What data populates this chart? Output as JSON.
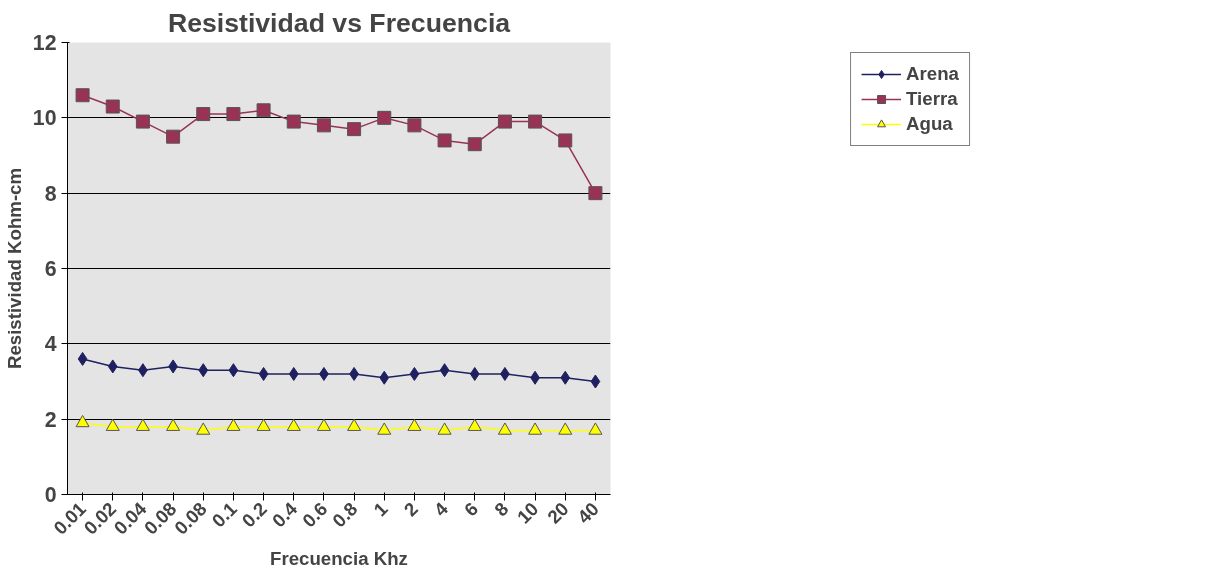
{
  "chart_data": {
    "type": "line",
    "title": "Resistividad vs Frecuencia",
    "xlabel": "Frecuencia Khz",
    "ylabel": "Resistividad Kohm-cm",
    "categories": [
      "0.01",
      "0.02",
      "0.04",
      "0.08",
      "0.08",
      "0.1",
      "0.2",
      "0.4",
      "0.6",
      "0.8",
      "1",
      "2",
      "4",
      "6",
      "8",
      "10",
      "20",
      "40"
    ],
    "series": [
      {
        "name": "Arena",
        "color": "#1f2060",
        "marker": "diamond",
        "values": [
          3.6,
          3.4,
          3.3,
          3.4,
          3.3,
          3.3,
          3.2,
          3.2,
          3.2,
          3.2,
          3.1,
          3.2,
          3.3,
          3.2,
          3.2,
          3.1,
          3.1,
          3.0
        ]
      },
      {
        "name": "Tierra",
        "color": "#993355",
        "marker": "square",
        "values": [
          10.6,
          10.3,
          9.9,
          9.5,
          10.1,
          10.1,
          10.2,
          9.9,
          9.8,
          9.7,
          10.0,
          9.8,
          9.4,
          9.3,
          9.9,
          9.9,
          9.4,
          8.0
        ]
      },
      {
        "name": "Agua",
        "color": "#ffff00",
        "marker": "triangle",
        "values": [
          1.9,
          1.8,
          1.8,
          1.8,
          1.7,
          1.8,
          1.8,
          1.8,
          1.8,
          1.8,
          1.7,
          1.8,
          1.7,
          1.8,
          1.7,
          1.7,
          1.7,
          1.7
        ]
      }
    ],
    "ylim": [
      0,
      12
    ],
    "yticks": [
      0,
      2,
      4,
      6,
      8,
      10,
      12
    ],
    "grid": "y",
    "legend": "top right"
  }
}
